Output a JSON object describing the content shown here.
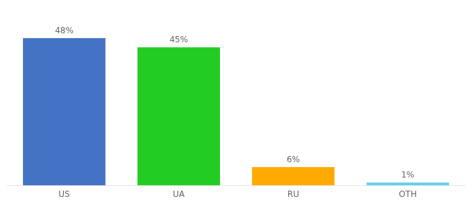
{
  "chart_data": {
    "type": "bar",
    "categories": [
      "US",
      "UA",
      "RU",
      "OTH"
    ],
    "values": [
      48,
      45,
      6,
      1
    ],
    "value_labels": [
      "48%",
      "45%",
      "6%",
      "1%"
    ],
    "colors": [
      "#4472c4",
      "#22cc22",
      "#ffaa00",
      "#66ccee"
    ],
    "ylim": [
      0,
      55
    ],
    "grid": false,
    "data_labels": true,
    "tick_labels": "x"
  }
}
